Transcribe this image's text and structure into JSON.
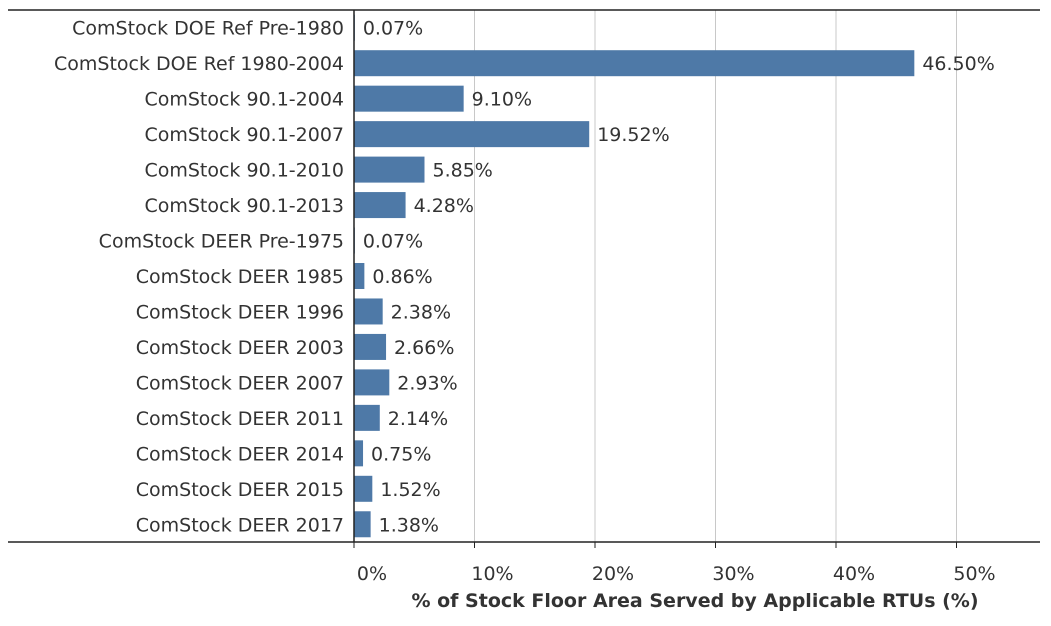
{
  "chart_data": {
    "type": "bar",
    "orientation": "horizontal",
    "categories": [
      "ComStock DOE Ref Pre-1980",
      "ComStock DOE Ref 1980-2004",
      "ComStock 90.1-2004",
      "ComStock 90.1-2007",
      "ComStock 90.1-2010",
      "ComStock 90.1-2013",
      "ComStock DEER Pre-1975",
      "ComStock DEER 1985",
      "ComStock DEER 1996",
      "ComStock DEER 2003",
      "ComStock DEER 2007",
      "ComStock DEER 2011",
      "ComStock DEER 2014",
      "ComStock DEER 2015",
      "ComStock DEER 2017"
    ],
    "values": [
      0.07,
      46.5,
      9.1,
      19.52,
      5.85,
      4.28,
      0.07,
      0.86,
      2.38,
      2.66,
      2.93,
      2.14,
      0.75,
      1.52,
      1.38
    ],
    "value_labels": [
      "0.07%",
      "46.50%",
      "9.10%",
      "19.52%",
      "5.85%",
      "4.28%",
      "0.07%",
      "0.86%",
      "2.38%",
      "2.66%",
      "2.93%",
      "2.14%",
      "0.75%",
      "1.52%",
      "1.38%"
    ],
    "title": "",
    "xlabel": "% of Stock Floor Area Served by Applicable RTUs (%)",
    "ylabel": "",
    "xlim": [
      0,
      56
    ],
    "xticks": [
      0,
      10,
      20,
      30,
      40,
      50
    ],
    "xtick_labels": [
      "0%",
      "10%",
      "20%",
      "30%",
      "40%",
      "50%"
    ],
    "grid": true,
    "legend": "none",
    "bar_color": "#4e79a7",
    "grid_color": "#c8c8c8"
  }
}
